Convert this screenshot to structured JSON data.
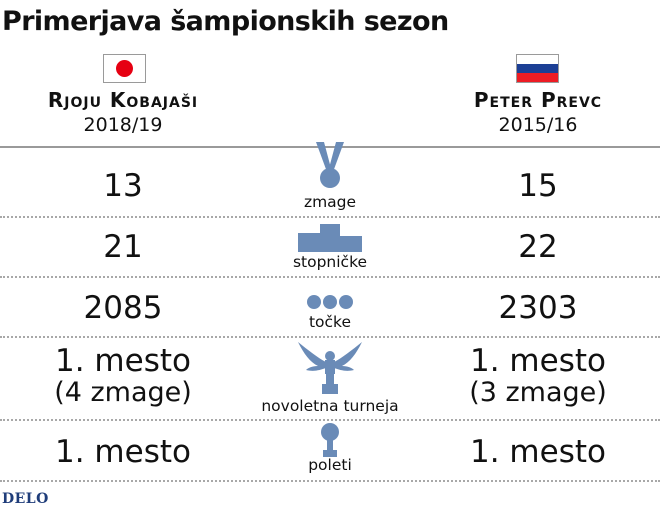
{
  "title": "Primerjava šampionskih sezon",
  "colors": {
    "icon": "#6a8bb7",
    "divider": "#9a9a9a",
    "text": "#111111",
    "logo": "#1f3d7a",
    "japan_red": "#e60012",
    "slovenia_white": "#ffffff",
    "slovenia_blue": "#1c3f95",
    "slovenia_red": "#ed1c24"
  },
  "chart_data": {
    "type": "table",
    "title": "Primerjava šampionskih sezon",
    "columns": [
      {
        "name": "Rjoju Kobajaši",
        "season": "2018/19",
        "flag": "japan-flag-icon"
      },
      {
        "name": "Peter Prevc",
        "season": "2015/16",
        "flag": "slovenia-flag-icon"
      }
    ],
    "rows": [
      {
        "category": "zmage",
        "icon": "medal-icon",
        "left": "13",
        "right": "15",
        "left_values": [
          13
        ],
        "right_values": [
          15
        ]
      },
      {
        "category": "stopničke",
        "icon": "podium-icon",
        "left": "21",
        "right": "22",
        "left_values": [
          21
        ],
        "right_values": [
          22
        ]
      },
      {
        "category": "točke",
        "icon": "dots-icon",
        "left": "2085",
        "right": "2303",
        "left_values": [
          2085
        ],
        "right_values": [
          2303
        ]
      },
      {
        "category": "novoletna turneja",
        "icon": "eagle-trophy-icon",
        "left": "1. mesto",
        "left_sub": "(4 zmage)",
        "right": "1. mesto",
        "right_sub": "(3 zmage)",
        "left_values": [
          1,
          4
        ],
        "right_values": [
          1,
          3
        ]
      },
      {
        "category": "poleti",
        "icon": "globe-trophy-icon",
        "left": "1. mesto",
        "right": "1. mesto",
        "left_values": [
          1
        ],
        "right_values": [
          1
        ]
      }
    ]
  },
  "logo": "DELO"
}
